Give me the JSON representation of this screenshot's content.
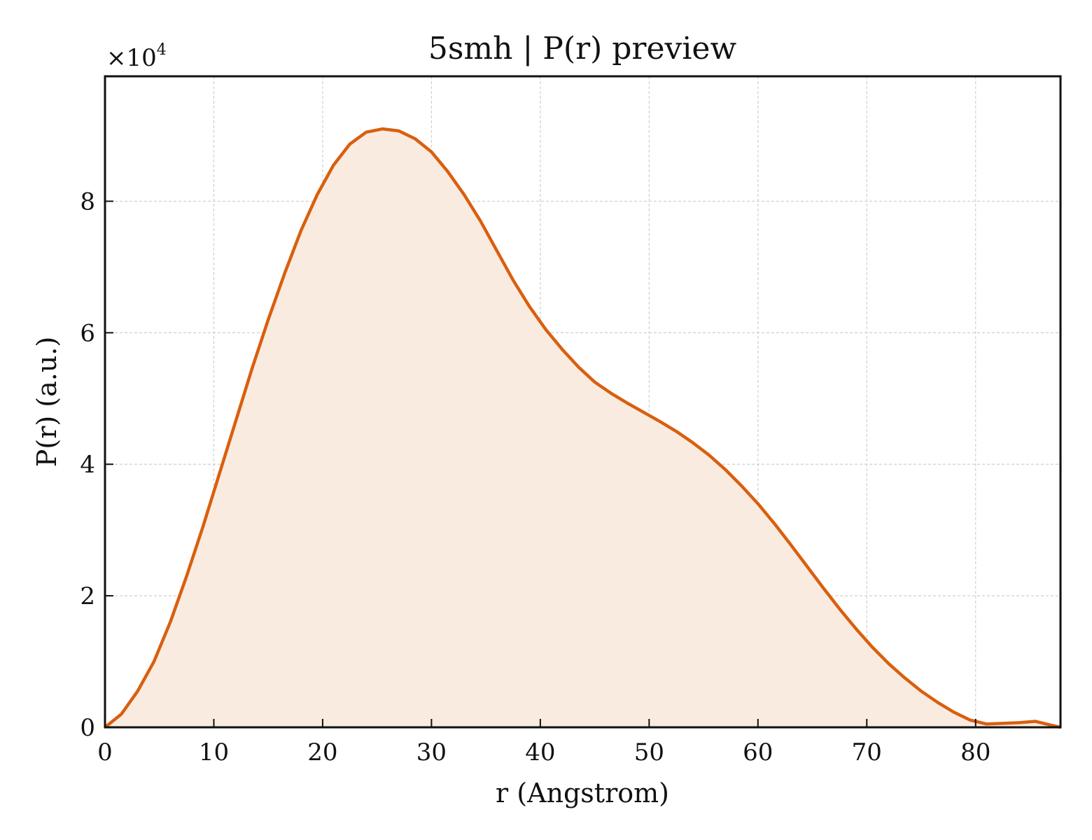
{
  "chart_data": {
    "type": "area",
    "title": "5smh | P(r) preview",
    "xlabel": "r (Angstrom)",
    "ylabel": "P(r) (a.u.)",
    "y_offset_label": {
      "base": "×10",
      "exponent": "4"
    },
    "xlim": [
      0,
      87.8
    ],
    "ylim": [
      0,
      9.9
    ],
    "y_scale_factor": 10000,
    "x_ticks": [
      0,
      10,
      20,
      30,
      40,
      50,
      60,
      70,
      80
    ],
    "x_tick_labels": [
      "0",
      "10",
      "20",
      "30",
      "40",
      "50",
      "60",
      "70",
      "80"
    ],
    "y_ticks": [
      0,
      2,
      4,
      6,
      8
    ],
    "y_tick_labels": [
      "0",
      "2",
      "4",
      "6",
      "8"
    ],
    "grid": true,
    "colors": {
      "line": "#d95f0e",
      "fill": "#f9ebe0"
    },
    "series": [
      {
        "x": [
          0,
          1.5,
          3,
          4.5,
          6,
          7.5,
          9,
          10.5,
          12,
          13.5,
          15,
          16.5,
          18,
          19.5,
          21,
          22.5,
          24,
          25.5,
          27,
          28.5,
          30,
          31.5,
          33,
          34.5,
          36,
          37.5,
          39,
          40.5,
          42,
          43.5,
          45,
          46.5,
          48,
          49.5,
          51,
          52.5,
          54,
          55.5,
          57,
          58.5,
          60,
          61.5,
          63,
          64.5,
          66,
          67.5,
          69,
          70.5,
          72,
          73.5,
          75,
          76.5,
          78,
          79.5,
          81,
          82.5,
          84,
          85.5,
          87,
          87.8
        ],
        "y": [
          0.0,
          0.2,
          0.55,
          1.0,
          1.6,
          2.3,
          3.05,
          3.85,
          4.65,
          5.45,
          6.2,
          6.9,
          7.55,
          8.1,
          8.55,
          8.87,
          9.05,
          9.1,
          9.07,
          8.95,
          8.75,
          8.45,
          8.1,
          7.7,
          7.25,
          6.8,
          6.4,
          6.05,
          5.75,
          5.48,
          5.25,
          5.08,
          4.93,
          4.79,
          4.65,
          4.5,
          4.33,
          4.14,
          3.92,
          3.67,
          3.4,
          3.1,
          2.78,
          2.45,
          2.12,
          1.8,
          1.5,
          1.22,
          0.97,
          0.75,
          0.55,
          0.38,
          0.23,
          0.11,
          0.05,
          0.06,
          0.07,
          0.09,
          0.03,
          0.0
        ]
      }
    ]
  }
}
